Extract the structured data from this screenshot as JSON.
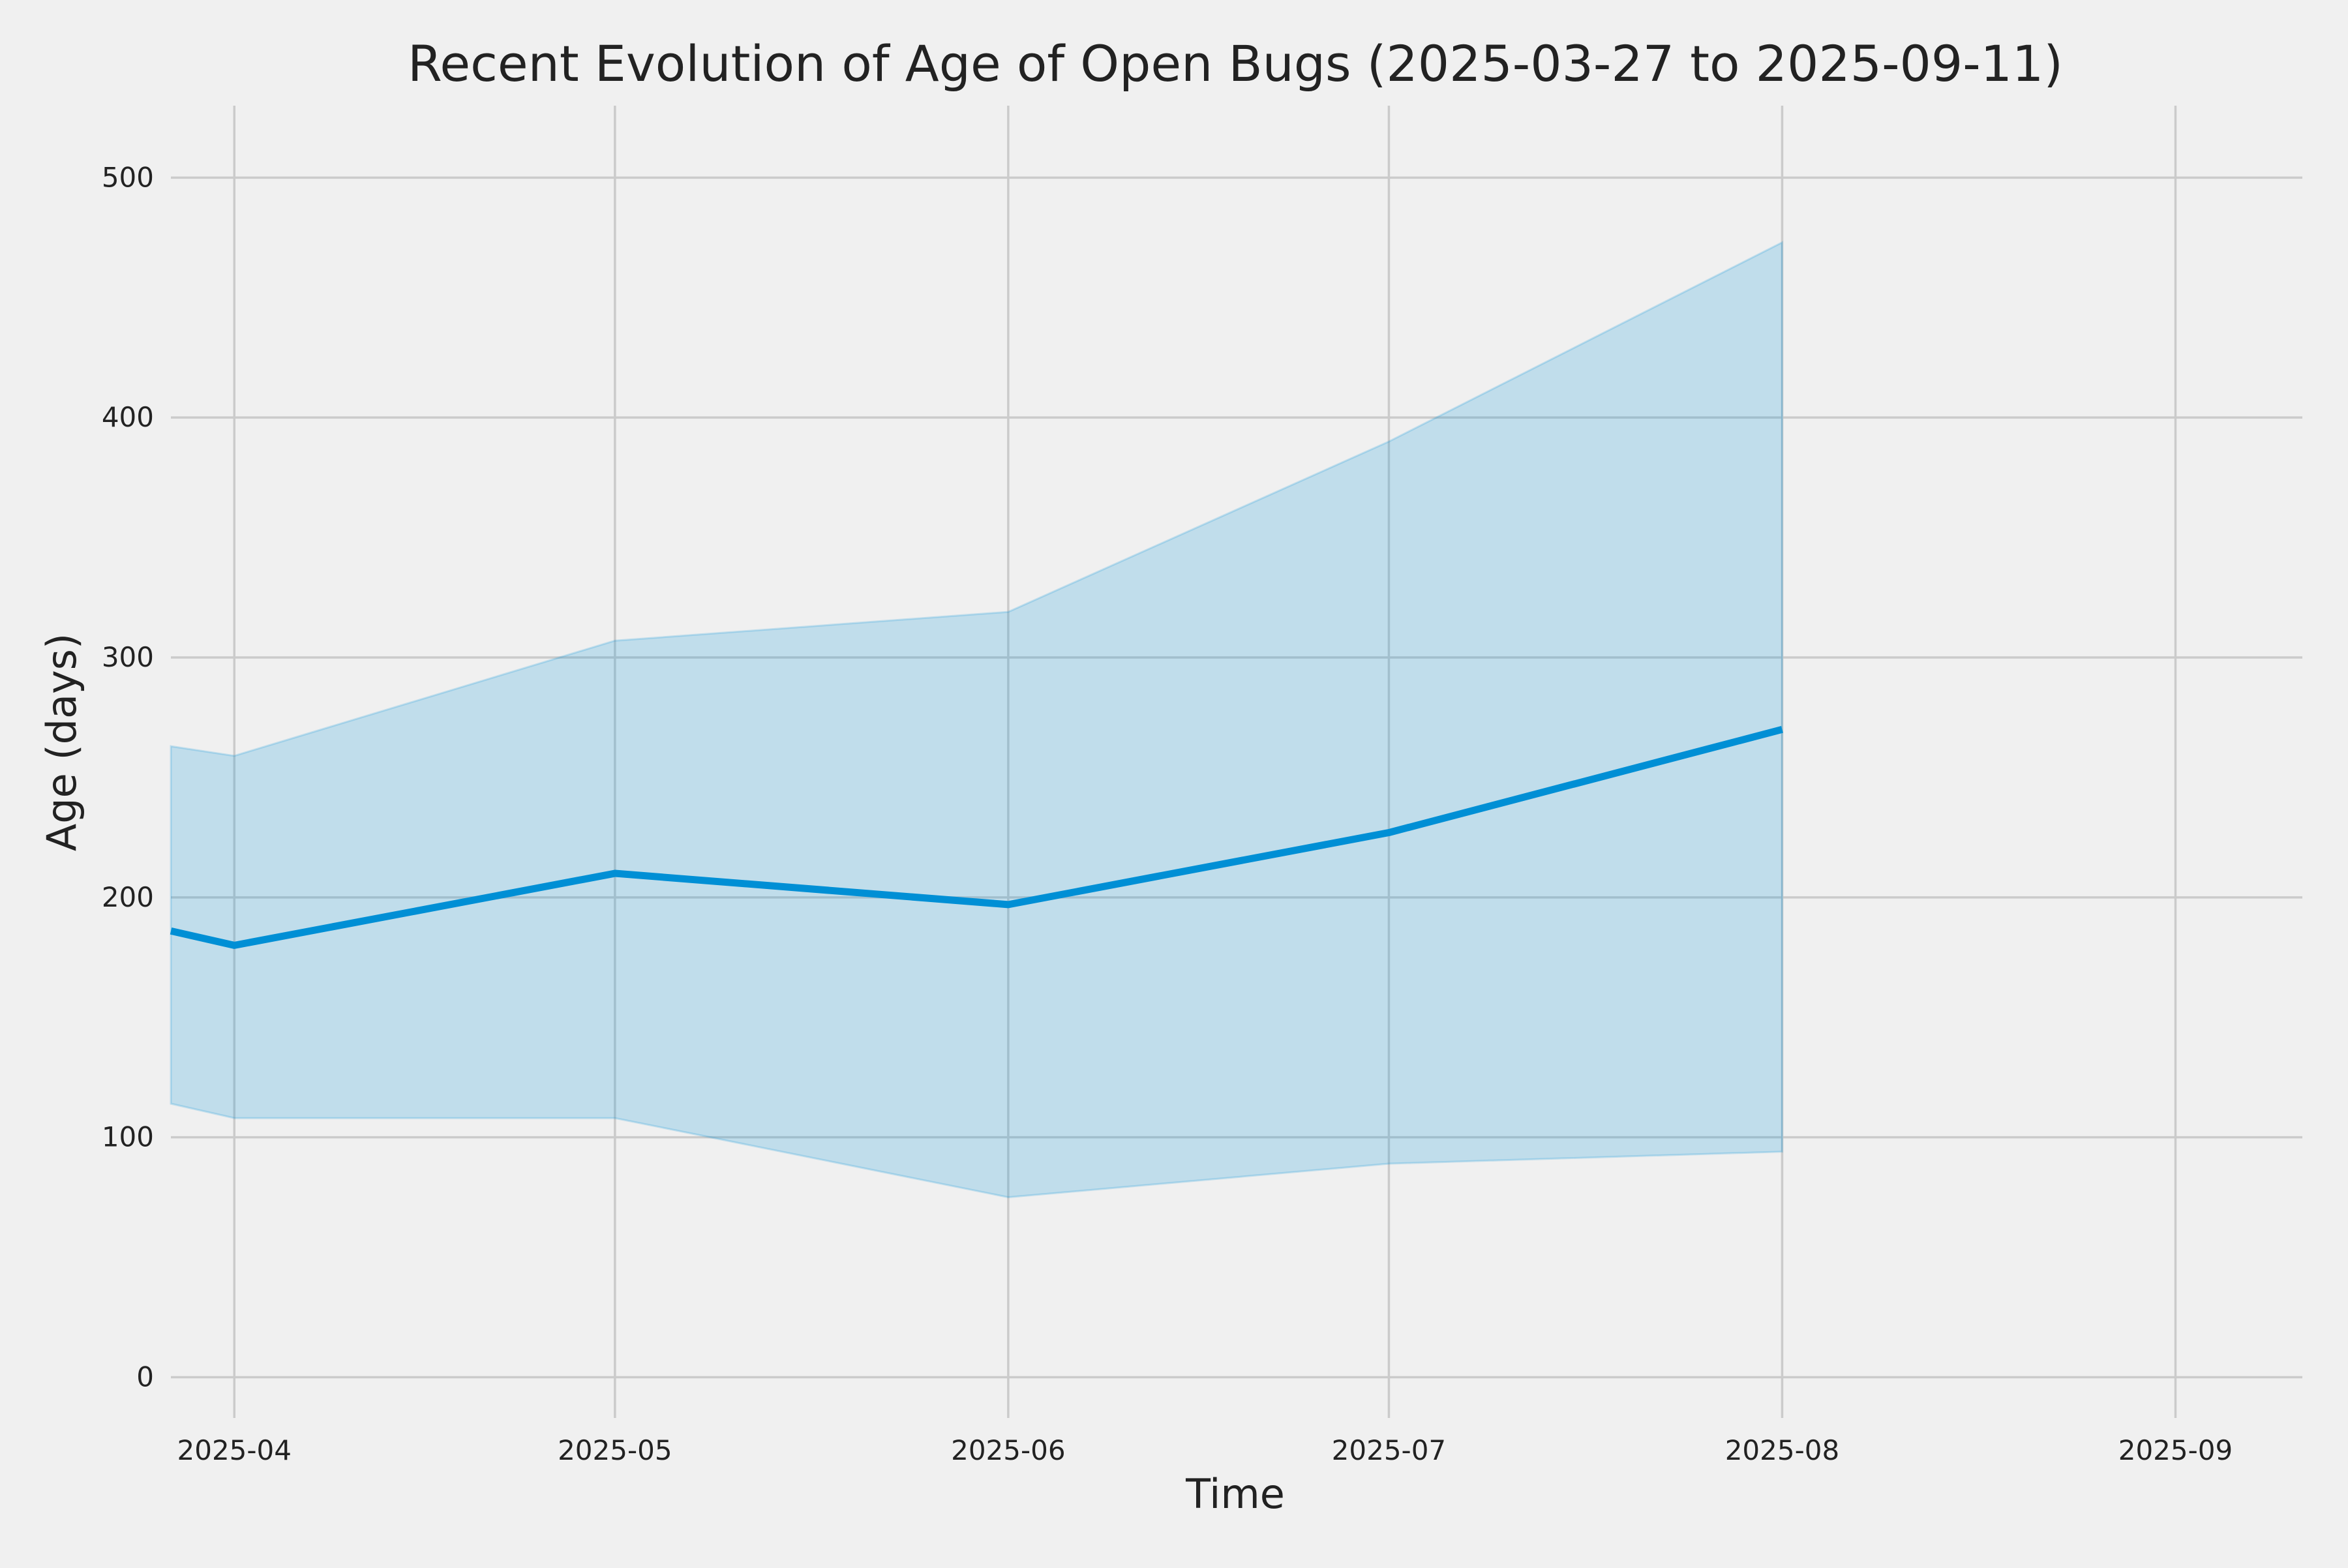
{
  "chart_data": {
    "type": "area",
    "title": "Recent Evolution of Age of Open Bugs (2025-03-27 to 2025-09-11)",
    "xlabel": "Time",
    "ylabel": "Age (days)",
    "x_ticks": [
      "2025-04",
      "2025-05",
      "2025-06",
      "2025-07",
      "2025-08",
      "2025-09"
    ],
    "y_ticks": [
      0,
      100,
      200,
      300,
      400,
      500
    ],
    "xlim": [
      "2025-03-27",
      "2025-09-11"
    ],
    "ylim": [
      -17,
      530
    ],
    "grid": true,
    "x": [
      "2025-03-27",
      "2025-04-01",
      "2025-05-01",
      "2025-06-01",
      "2025-07-01",
      "2025-08-01"
    ],
    "series": [
      {
        "values": [
          186,
          180,
          210,
          197,
          227,
          270
        ],
        "lower": [
          114,
          108,
          108,
          75,
          89,
          94
        ],
        "upper": [
          263,
          259,
          307,
          319,
          390,
          473
        ]
      }
    ],
    "colors": {
      "line": "#008fd5",
      "band": "#008fd5",
      "grid": "#cbcbcb",
      "background": "#f0f0f0",
      "text": "#222222"
    }
  }
}
